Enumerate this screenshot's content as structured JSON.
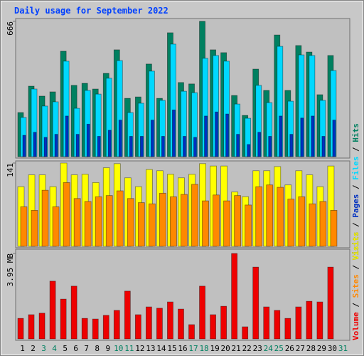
{
  "title": "Daily usage for September 2022",
  "chart_data": {
    "type": "bar",
    "categories": [
      "1",
      "2",
      "3",
      "4",
      "5",
      "6",
      "7",
      "8",
      "9",
      "10",
      "11",
      "12",
      "13",
      "14",
      "15",
      "16",
      "17",
      "18",
      "19",
      "20",
      "21",
      "22",
      "23",
      "24",
      "25",
      "26",
      "27",
      "28",
      "29",
      "30",
      "31"
    ],
    "category_colors": [
      "#000000",
      "#000000",
      "#008060",
      "#008060",
      "#000000",
      "#000000",
      "#000000",
      "#000000",
      "#000000",
      "#008060",
      "#008060",
      "#000000",
      "#000000",
      "#000000",
      "#000000",
      "#000000",
      "#008060",
      "#008060",
      "#000000",
      "#000000",
      "#000000",
      "#000000",
      "#000000",
      "#008060",
      "#008060",
      "#000000",
      "#000000",
      "#000000",
      "#000000",
      "#000000",
      "#008060"
    ],
    "legend_separator": "/",
    "panels": [
      {
        "ylim": [
          0,
          666
        ],
        "yticks": [
          666
        ],
        "series": [
          {
            "name": "Hits",
            "color": "#008060",
            "values": [
              217,
              347,
              298,
              319,
              519,
              351,
              361,
              333,
              410,
              526,
              287,
              294,
              456,
              287,
              610,
              365,
              358,
              666,
              526,
              512,
              301,
              203,
              431,
              326,
              599,
              326,
              547,
              515,
              305,
              498,
              0
            ]
          },
          {
            "name": "Files",
            "color": "#00d8ff",
            "values": [
              193,
              333,
              249,
              270,
              470,
              238,
              326,
              308,
              386,
              473,
              217,
              263,
              421,
              277,
              554,
              322,
              315,
              484,
              498,
              470,
              259,
              189,
              351,
              266,
              543,
              273,
              501,
              498,
              277,
              424,
              0
            ]
          },
          {
            "name": "Pages",
            "color": "#0030c0",
            "values": [
              105,
              120,
              95,
              110,
              200,
              110,
              160,
              100,
              130,
              180,
              100,
              100,
              180,
              100,
              230,
              100,
              95,
              200,
              220,
              210,
              110,
              60,
              120,
              100,
              200,
              110,
              190,
              200,
              100,
              180,
              0
            ]
          }
        ]
      },
      {
        "ylim": [
          0,
          141
        ],
        "yticks": [
          141
        ],
        "series": [
          {
            "name": "Visits",
            "color": "#ffff00",
            "values": [
              101,
              121,
              121,
              101,
              141,
              121,
              122,
              108,
              133,
              140,
              116,
              101,
              130,
              128,
              122,
              116,
              122,
              140,
              136,
              136,
              92,
              84,
              128,
              128,
              135,
              104,
              128,
              121,
              101,
              136,
              0
            ]
          },
          {
            "name": "Sites",
            "color": "#ff8800",
            "values": [
              67,
              61,
              95,
              67,
              108,
              81,
              76,
              84,
              86,
              94,
              81,
              74,
              72,
              90,
              84,
              88,
              105,
              77,
              87,
              77,
              86,
              70,
              101,
              104,
              100,
              80,
              84,
              72,
              76,
              61,
              0
            ]
          }
        ]
      },
      {
        "ylim": [
          0,
          3.95
        ],
        "yticks": [
          {
            "value": 3.95,
            "label": "3.95 MB"
          }
        ],
        "series": [
          {
            "name": "Volume",
            "color": "#ee0000",
            "values": [
              0.95,
              1.12,
              1.19,
              2.67,
              1.84,
              2.44,
              0.95,
              0.92,
              1.09,
              1.32,
              2.21,
              1.12,
              1.48,
              1.42,
              1.71,
              1.38,
              0.66,
              2.44,
              1.12,
              1.51,
              3.95,
              0.56,
              3.32,
              1.48,
              1.32,
              0.95,
              1.48,
              1.74,
              1.71,
              3.32,
              0
            ]
          }
        ]
      }
    ]
  }
}
